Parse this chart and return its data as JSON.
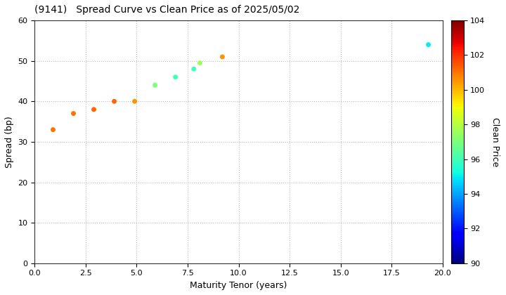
{
  "title": "(9141)   Spread Curve vs Clean Price as of 2025/05/02",
  "xlabel": "Maturity Tenor (years)",
  "ylabel": "Spread (bp)",
  "colorbar_label": "Clean Price",
  "xlim": [
    0.0,
    20.0
  ],
  "ylim": [
    0,
    60
  ],
  "xticks": [
    0.0,
    2.5,
    5.0,
    7.5,
    10.0,
    12.5,
    15.0,
    17.5,
    20.0
  ],
  "yticks": [
    0,
    10,
    20,
    30,
    40,
    50,
    60
  ],
  "colorbar_min": 90,
  "colorbar_max": 104,
  "colorbar_ticks": [
    90,
    92,
    94,
    96,
    98,
    100,
    102,
    104
  ],
  "scatter_x": [
    0.9,
    1.9,
    2.9,
    3.9,
    4.9,
    5.9,
    6.9,
    7.8,
    8.1,
    9.2,
    19.3
  ],
  "scatter_y": [
    33,
    37,
    38,
    40,
    40,
    44,
    46,
    48,
    49.5,
    51,
    54
  ],
  "scatter_colors": [
    101.0,
    101.0,
    101.2,
    101.2,
    100.5,
    97.0,
    96.0,
    96.0,
    97.5,
    100.5,
    95.0
  ],
  "marker_size": 25,
  "background_color": "#ffffff",
  "grid_color": "#bbbbbb",
  "grid_style": ":"
}
